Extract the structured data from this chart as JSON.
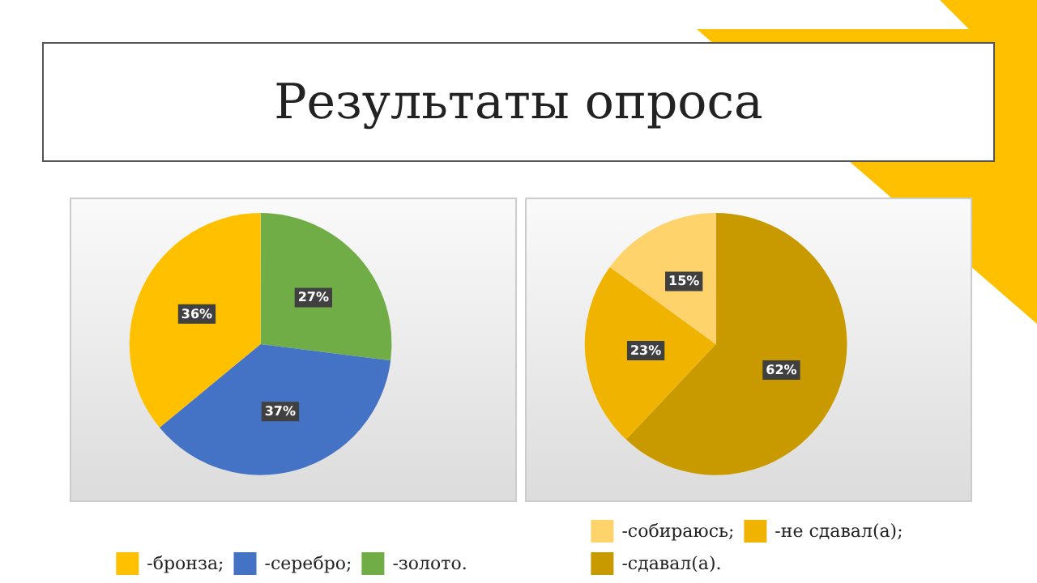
{
  "chart_data": [
    {
      "type": "pie",
      "title": "Результаты опроса",
      "categories": [
        "-золото",
        "-серебро",
        "-бронза"
      ],
      "annotations": [
        ";",
        ";",
        "."
      ],
      "values": [
        27,
        37,
        36
      ],
      "value_labels": [
        "27%",
        "37%",
        "36%"
      ],
      "colors": [
        "#70ad47",
        "#4472c4",
        "#ffc000"
      ],
      "legend": "bottom"
    },
    {
      "type": "pie",
      "categories": [
        "-сдавал(а)",
        "-не сдавал(а)",
        "-собираюсь"
      ],
      "annotations": [
        ";",
        ";",
        "."
      ],
      "values": [
        62,
        23,
        15
      ],
      "value_labels": [
        "62%",
        "23%",
        "15%"
      ],
      "colors": [
        "#c99a00",
        "#f0b400",
        "#ffd36b"
      ],
      "legend": "bottom"
    }
  ]
}
